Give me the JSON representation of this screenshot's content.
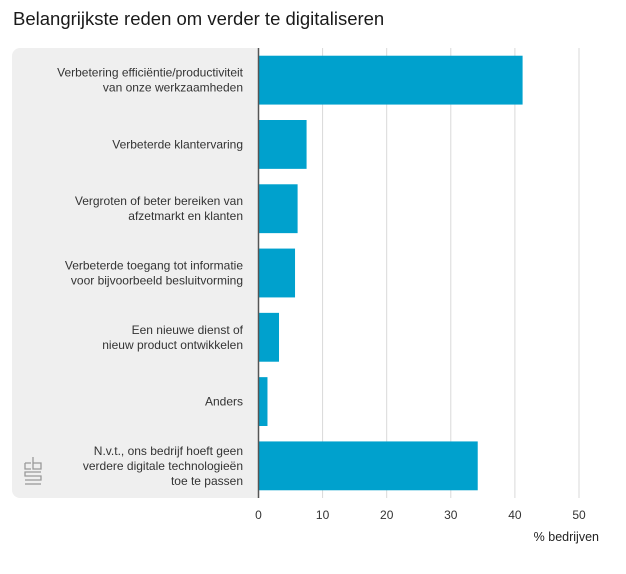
{
  "chart_data": {
    "type": "bar",
    "orientation": "horizontal",
    "title": "Belangrijkste reden om verder te digitaliseren",
    "categories": [
      [
        "Verbetering efficiëntie/productiviteit",
        "van onze werkzaamheden"
      ],
      [
        "Verbeterde klantervaring"
      ],
      [
        "Vergroten of beter bereiken van",
        "afzetmarkt en klanten"
      ],
      [
        "Verbeterde toegang tot informatie",
        "voor bijvoorbeeld besluitvorming"
      ],
      [
        "Een nieuwe dienst of",
        "nieuw product ontwikkelen"
      ],
      [
        "Anders"
      ],
      [
        "N.v.t., ons bedrijf hoeft geen",
        "verdere digitale technologieën",
        "toe te passen"
      ]
    ],
    "values": [
      41.2,
      7.5,
      6.1,
      5.7,
      3.2,
      1.4,
      34.2
    ],
    "xlabel": "% bedrijven",
    "ylabel": "",
    "xlim": [
      0,
      50
    ],
    "xticks": [
      0,
      10,
      20,
      30,
      40,
      50
    ],
    "grid": true,
    "bar_color": "#00a1cd",
    "logo": "cbs-logo"
  }
}
